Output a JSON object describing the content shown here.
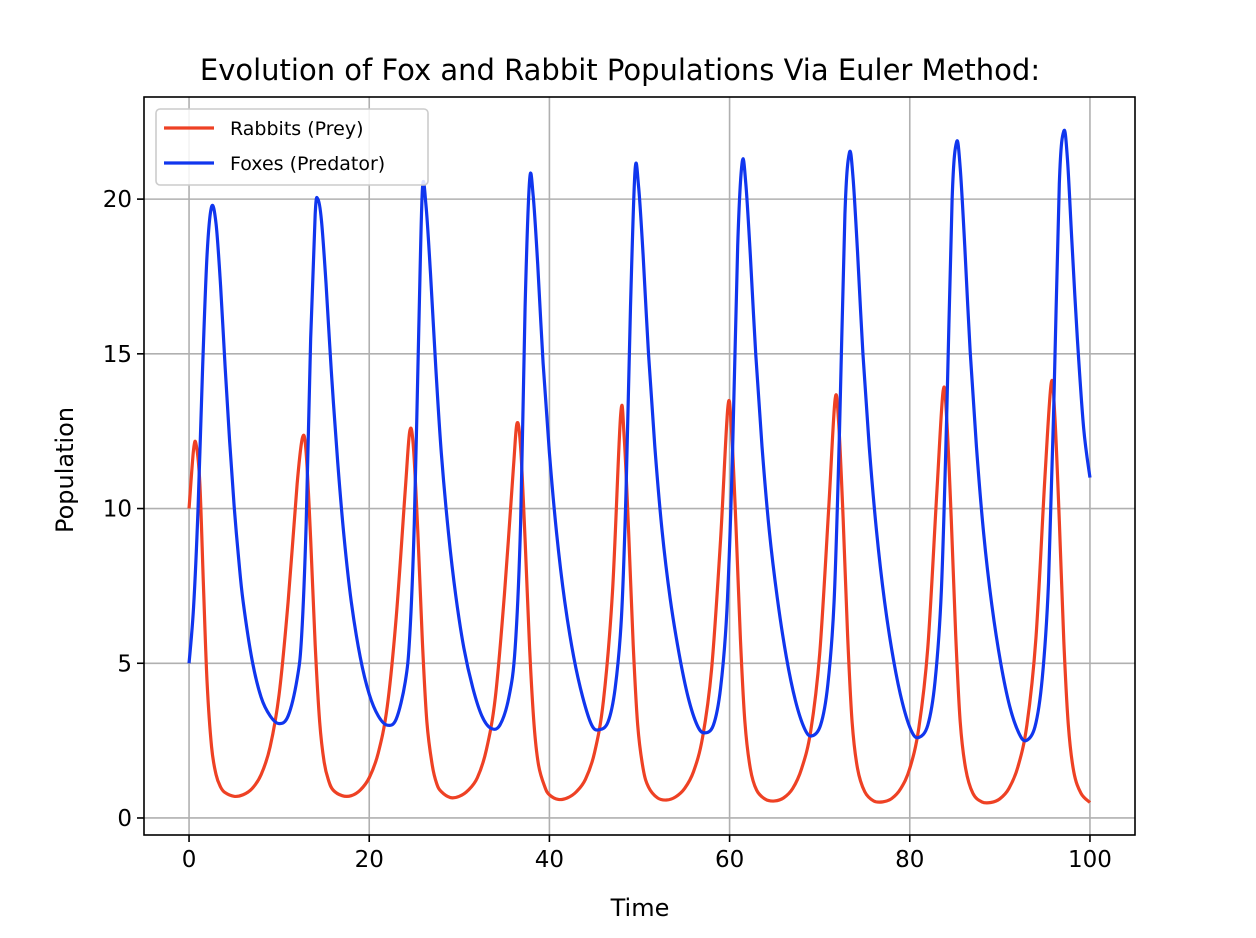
{
  "chart_data": {
    "type": "line",
    "title": "Evolution of Fox and Rabbit Populations Via Euler Method:",
    "xlabel": "Time",
    "ylabel": "Population",
    "xlim": [
      -5,
      105
    ],
    "ylim": [
      -0.55,
      23.3
    ],
    "xticks": [
      0,
      20,
      40,
      60,
      80,
      100
    ],
    "yticks": [
      0,
      5,
      10,
      15,
      20
    ],
    "grid": true,
    "legend_position": "top-left",
    "series": [
      {
        "name": "Rabbits (Prey)",
        "color": "#ee4124",
        "points": [
          [
            0,
            10.0
          ],
          [
            0.5,
            11.9
          ],
          [
            0.8,
            12.05
          ],
          [
            1.2,
            10.8
          ],
          [
            1.6,
            7.5
          ],
          [
            2.0,
            4.4
          ],
          [
            2.5,
            2.3
          ],
          [
            3.0,
            1.4
          ],
          [
            3.5,
            1.0
          ],
          [
            4.0,
            0.82
          ],
          [
            5.0,
            0.7
          ],
          [
            6.0,
            0.75
          ],
          [
            7.0,
            0.95
          ],
          [
            8.0,
            1.4
          ],
          [
            9.0,
            2.3
          ],
          [
            10.0,
            4.0
          ],
          [
            11.0,
            7.0
          ],
          [
            12.0,
            10.8
          ],
          [
            12.6,
            12.3
          ],
          [
            13.0,
            11.8
          ],
          [
            13.5,
            9.0
          ],
          [
            14.0,
            5.6
          ],
          [
            14.5,
            3.1
          ],
          [
            15.0,
            1.8
          ],
          [
            15.5,
            1.2
          ],
          [
            16.0,
            0.9
          ],
          [
            17.0,
            0.72
          ],
          [
            18.0,
            0.72
          ],
          [
            19.0,
            0.9
          ],
          [
            20.0,
            1.3
          ],
          [
            21.0,
            2.1
          ],
          [
            22.0,
            3.6
          ],
          [
            23.0,
            6.5
          ],
          [
            24.0,
            10.6
          ],
          [
            24.5,
            12.5
          ],
          [
            24.9,
            12.0
          ],
          [
            25.4,
            9.2
          ],
          [
            25.9,
            5.7
          ],
          [
            26.4,
            3.1
          ],
          [
            27.0,
            1.7
          ],
          [
            27.5,
            1.1
          ],
          [
            28.0,
            0.85
          ],
          [
            29.0,
            0.66
          ],
          [
            30.0,
            0.7
          ],
          [
            31.0,
            0.9
          ],
          [
            32.0,
            1.3
          ],
          [
            33.0,
            2.2
          ],
          [
            34.0,
            3.9
          ],
          [
            35.0,
            7.2
          ],
          [
            36.0,
            11.3
          ],
          [
            36.4,
            12.75
          ],
          [
            36.8,
            12.0
          ],
          [
            37.3,
            9.0
          ],
          [
            37.8,
            5.5
          ],
          [
            38.3,
            3.0
          ],
          [
            38.8,
            1.7
          ],
          [
            39.5,
            1.0
          ],
          [
            40.0,
            0.75
          ],
          [
            41.0,
            0.6
          ],
          [
            42.0,
            0.65
          ],
          [
            43.0,
            0.85
          ],
          [
            44.0,
            1.25
          ],
          [
            45.0,
            2.1
          ],
          [
            46.0,
            3.8
          ],
          [
            47.0,
            7.3
          ],
          [
            47.9,
            13.0
          ],
          [
            48.3,
            12.3
          ],
          [
            48.8,
            9.2
          ],
          [
            49.3,
            5.6
          ],
          [
            49.8,
            3.0
          ],
          [
            50.4,
            1.6
          ],
          [
            51.0,
            1.0
          ],
          [
            52.0,
            0.65
          ],
          [
            53.0,
            0.58
          ],
          [
            54.0,
            0.68
          ],
          [
            55.0,
            0.95
          ],
          [
            56.0,
            1.5
          ],
          [
            57.0,
            2.6
          ],
          [
            58.0,
            4.8
          ],
          [
            59.0,
            9.0
          ],
          [
            59.8,
            13.25
          ],
          [
            60.2,
            12.6
          ],
          [
            60.7,
            9.5
          ],
          [
            61.2,
            5.8
          ],
          [
            61.7,
            3.1
          ],
          [
            62.3,
            1.6
          ],
          [
            63.0,
            0.9
          ],
          [
            64.0,
            0.6
          ],
          [
            65.0,
            0.55
          ],
          [
            66.0,
            0.65
          ],
          [
            67.0,
            0.95
          ],
          [
            68.0,
            1.6
          ],
          [
            69.0,
            2.8
          ],
          [
            70.0,
            5.3
          ],
          [
            71.0,
            10.0
          ],
          [
            71.7,
            13.5
          ],
          [
            72.1,
            12.8
          ],
          [
            72.6,
            9.7
          ],
          [
            73.1,
            5.9
          ],
          [
            73.6,
            3.1
          ],
          [
            74.2,
            1.6
          ],
          [
            75.0,
            0.85
          ],
          [
            76.0,
            0.55
          ],
          [
            77.0,
            0.52
          ],
          [
            78.0,
            0.63
          ],
          [
            79.0,
            0.95
          ],
          [
            80.0,
            1.6
          ],
          [
            81.0,
            2.9
          ],
          [
            82.0,
            5.5
          ],
          [
            83.0,
            10.5
          ],
          [
            83.7,
            13.8
          ],
          [
            84.1,
            12.9
          ],
          [
            84.6,
            9.7
          ],
          [
            85.1,
            5.9
          ],
          [
            85.6,
            3.1
          ],
          [
            86.2,
            1.6
          ],
          [
            87.0,
            0.8
          ],
          [
            88.0,
            0.52
          ],
          [
            89.0,
            0.5
          ],
          [
            90.0,
            0.62
          ],
          [
            91.0,
            0.95
          ],
          [
            92.0,
            1.65
          ],
          [
            93.0,
            3.0
          ],
          [
            94.0,
            5.8
          ],
          [
            95.0,
            11.0
          ],
          [
            95.7,
            14.05
          ],
          [
            96.1,
            13.0
          ],
          [
            96.6,
            9.6
          ],
          [
            97.1,
            5.7
          ],
          [
            97.6,
            3.0
          ],
          [
            98.2,
            1.5
          ],
          [
            99.0,
            0.8
          ],
          [
            100.0,
            0.5
          ]
        ]
      },
      {
        "name": "Foxes (Predator)",
        "color": "#1036ee",
        "points": [
          [
            0,
            5.0
          ],
          [
            0.5,
            6.8
          ],
          [
            1.0,
            10.0
          ],
          [
            1.5,
            14.5
          ],
          [
            2.0,
            18.2
          ],
          [
            2.5,
            19.75
          ],
          [
            3.0,
            19.2
          ],
          [
            3.5,
            17.2
          ],
          [
            4.0,
            14.6
          ],
          [
            4.5,
            12.2
          ],
          [
            5.0,
            10.1
          ],
          [
            5.5,
            8.4
          ],
          [
            6.0,
            7.0
          ],
          [
            7.0,
            5.1
          ],
          [
            8.0,
            3.9
          ],
          [
            9.0,
            3.3
          ],
          [
            10.0,
            3.05
          ],
          [
            11.0,
            3.3
          ],
          [
            12.0,
            4.5
          ],
          [
            12.5,
            5.9
          ],
          [
            13.0,
            9.5
          ],
          [
            13.5,
            15.5
          ],
          [
            14.0,
            19.5
          ],
          [
            14.3,
            20.0
          ],
          [
            14.7,
            19.3
          ],
          [
            15.2,
            17.3
          ],
          [
            15.8,
            14.4
          ],
          [
            16.5,
            11.5
          ],
          [
            17.2,
            9.1
          ],
          [
            18.0,
            7.0
          ],
          [
            19.0,
            5.2
          ],
          [
            20.0,
            4.0
          ],
          [
            21.0,
            3.3
          ],
          [
            22.0,
            3.0
          ],
          [
            23.0,
            3.2
          ],
          [
            24.0,
            4.4
          ],
          [
            24.5,
            5.9
          ],
          [
            25.0,
            9.5
          ],
          [
            25.5,
            15.8
          ],
          [
            25.9,
            20.3
          ],
          [
            26.3,
            19.8
          ],
          [
            26.8,
            17.6
          ],
          [
            27.4,
            14.5
          ],
          [
            28.0,
            11.8
          ],
          [
            28.8,
            9.2
          ],
          [
            29.6,
            7.2
          ],
          [
            30.5,
            5.5
          ],
          [
            31.5,
            4.2
          ],
          [
            32.5,
            3.3
          ],
          [
            33.5,
            2.9
          ],
          [
            34.5,
            3.0
          ],
          [
            35.5,
            3.9
          ],
          [
            36.2,
            5.5
          ],
          [
            36.8,
            9.5
          ],
          [
            37.3,
            16.5
          ],
          [
            37.8,
            20.6
          ],
          [
            38.2,
            20.1
          ],
          [
            38.7,
            17.9
          ],
          [
            39.3,
            14.7
          ],
          [
            40.0,
            11.8
          ],
          [
            40.8,
            9.2
          ],
          [
            41.7,
            7.0
          ],
          [
            42.7,
            5.2
          ],
          [
            43.7,
            3.9
          ],
          [
            44.7,
            3.0
          ],
          [
            45.5,
            2.85
          ],
          [
            46.5,
            3.1
          ],
          [
            47.3,
            4.2
          ],
          [
            48.0,
            6.5
          ],
          [
            48.5,
            10.5
          ],
          [
            49.0,
            16.5
          ],
          [
            49.5,
            20.9
          ],
          [
            49.9,
            20.4
          ],
          [
            50.4,
            18.2
          ],
          [
            51.0,
            15.0
          ],
          [
            51.7,
            12.0
          ],
          [
            52.5,
            9.3
          ],
          [
            53.4,
            7.1
          ],
          [
            54.4,
            5.3
          ],
          [
            55.4,
            3.9
          ],
          [
            56.4,
            3.0
          ],
          [
            57.2,
            2.75
          ],
          [
            58.2,
            3.0
          ],
          [
            59.0,
            4.2
          ],
          [
            59.7,
            6.7
          ],
          [
            60.3,
            11.5
          ],
          [
            60.9,
            18.5
          ],
          [
            61.4,
            21.2
          ],
          [
            61.8,
            20.5
          ],
          [
            62.3,
            18.2
          ],
          [
            62.9,
            15.0
          ],
          [
            63.6,
            12.0
          ],
          [
            64.4,
            9.3
          ],
          [
            65.3,
            7.1
          ],
          [
            66.3,
            5.2
          ],
          [
            67.3,
            3.8
          ],
          [
            68.3,
            2.9
          ],
          [
            69.1,
            2.65
          ],
          [
            70.1,
            3.0
          ],
          [
            70.9,
            4.3
          ],
          [
            71.6,
            7.0
          ],
          [
            72.2,
            12.5
          ],
          [
            72.8,
            19.5
          ],
          [
            73.3,
            21.5
          ],
          [
            73.7,
            20.7
          ],
          [
            74.2,
            18.3
          ],
          [
            74.8,
            15.0
          ],
          [
            75.5,
            12.0
          ],
          [
            76.3,
            9.3
          ],
          [
            77.2,
            7.0
          ],
          [
            78.2,
            5.1
          ],
          [
            79.2,
            3.7
          ],
          [
            80.2,
            2.8
          ],
          [
            81.0,
            2.6
          ],
          [
            82.0,
            3.0
          ],
          [
            82.8,
            4.4
          ],
          [
            83.5,
            7.3
          ],
          [
            84.1,
            13.0
          ],
          [
            84.7,
            20.0
          ],
          [
            85.2,
            21.85
          ],
          [
            85.6,
            21.0
          ],
          [
            86.1,
            18.5
          ],
          [
            86.7,
            15.1
          ],
          [
            87.4,
            12.0
          ],
          [
            88.2,
            9.2
          ],
          [
            89.1,
            6.9
          ],
          [
            90.1,
            5.0
          ],
          [
            91.1,
            3.6
          ],
          [
            92.1,
            2.75
          ],
          [
            92.9,
            2.5
          ],
          [
            93.9,
            2.95
          ],
          [
            94.7,
            4.5
          ],
          [
            95.4,
            7.6
          ],
          [
            96.0,
            13.5
          ],
          [
            96.6,
            20.5
          ],
          [
            97.1,
            22.2
          ],
          [
            97.5,
            21.3
          ],
          [
            98.0,
            18.6
          ],
          [
            98.6,
            15.5
          ],
          [
            99.3,
            12.6
          ],
          [
            100.0,
            11.0
          ]
        ]
      }
    ]
  }
}
